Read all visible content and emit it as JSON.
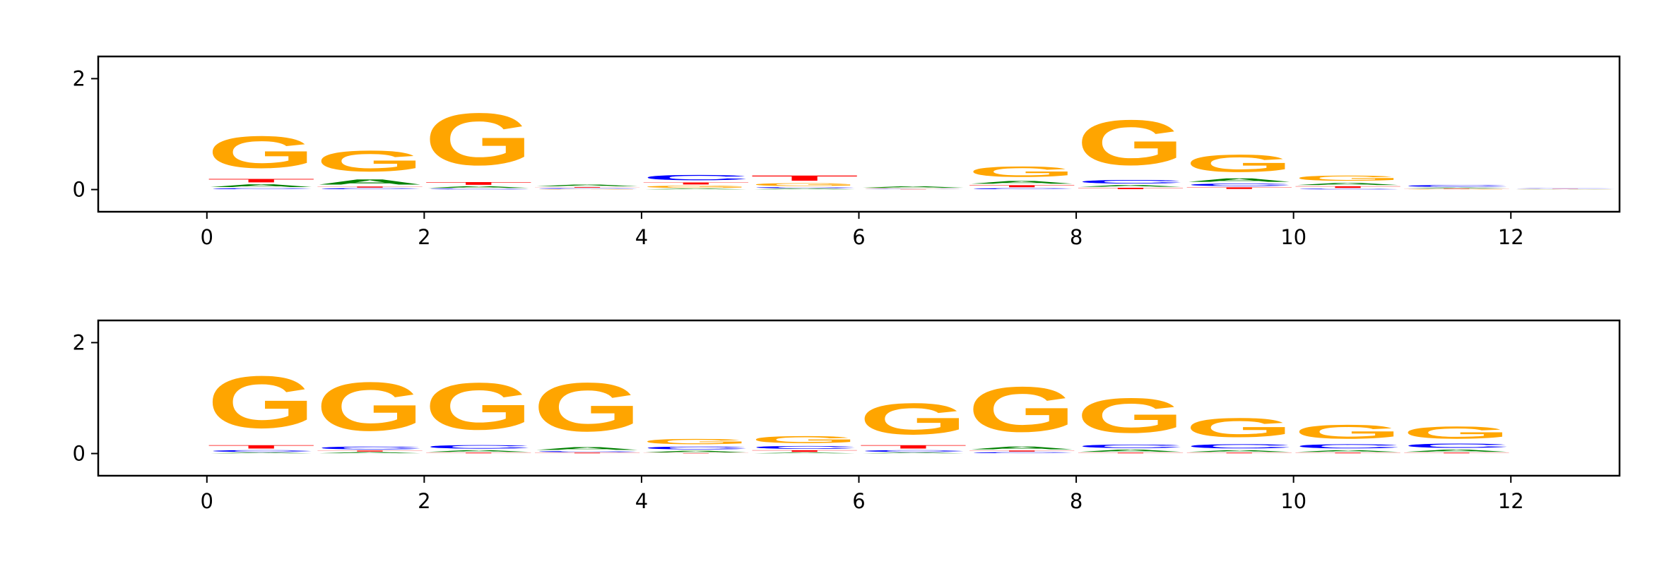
{
  "chart_data": [
    {
      "type": "sequence-logo",
      "title": "",
      "xlabel": "",
      "ylabel": "",
      "xlim": [
        -1,
        13
      ],
      "ylim": [
        -0.4,
        2.4
      ],
      "xticks": [
        0,
        2,
        4,
        6,
        8,
        10,
        12
      ],
      "yticks": [
        0,
        2
      ],
      "grid": false,
      "colors": {
        "A": "#008000",
        "C": "#0000ff",
        "G": "#ffa500",
        "T": "#ff0000"
      },
      "positions": [
        {
          "pos": 0,
          "A": 0.08,
          "C": 0.03,
          "G": 0.92,
          "T": 0.1
        },
        {
          "pos": 1,
          "A": 0.15,
          "C": 0.03,
          "G": 0.6,
          "T": 0.03
        },
        {
          "pos": 2,
          "A": 0.05,
          "C": 0.02,
          "G": 1.5,
          "T": 0.08
        },
        {
          "pos": 3,
          "A": 0.05,
          "C": 0.02,
          "G": 0.01,
          "T": 0.02
        },
        {
          "pos": 4,
          "A": 0.02,
          "C": 0.15,
          "G": 0.06,
          "T": 0.06
        },
        {
          "pos": 5,
          "A": 0.02,
          "C": 0.03,
          "G": 0.08,
          "T": 0.15
        },
        {
          "pos": 6,
          "A": 0.04,
          "C": 0.01,
          "G": 0.01,
          "T": 0.005
        },
        {
          "pos": 7,
          "A": 0.08,
          "C": 0.03,
          "G": 0.3,
          "T": 0.06
        },
        {
          "pos": 8,
          "A": 0.05,
          "C": 0.1,
          "G": 1.3,
          "T": 0.04
        },
        {
          "pos": 9,
          "A": 0.1,
          "C": 0.07,
          "G": 0.5,
          "T": 0.05
        },
        {
          "pos": 10,
          "A": 0.06,
          "C": 0.02,
          "G": 0.15,
          "T": 0.05
        },
        {
          "pos": 11,
          "A": 0.02,
          "C": 0.05,
          "G": 0.01,
          "T": 0.01
        },
        {
          "pos": 12,
          "A": 0.005,
          "C": 0.01,
          "G": 0.005,
          "T": 0.005
        }
      ]
    },
    {
      "type": "sequence-logo",
      "title": "",
      "xlabel": "",
      "ylabel": "",
      "xlim": [
        -1,
        13
      ],
      "ylim": [
        -0.4,
        2.4
      ],
      "xticks": [
        0,
        2,
        4,
        6,
        8,
        10,
        12
      ],
      "yticks": [
        0,
        2
      ],
      "grid": false,
      "colors": {
        "A": "#008000",
        "C": "#0000ff",
        "G": "#ffa500",
        "T": "#ff0000"
      },
      "positions": [
        {
          "pos": 0,
          "A": 0.02,
          "C": 0.05,
          "G": 1.5,
          "T": 0.1
        },
        {
          "pos": 1,
          "A": 0.03,
          "C": 0.08,
          "G": 1.4,
          "T": 0.03
        },
        {
          "pos": 2,
          "A": 0.05,
          "C": 0.1,
          "G": 1.35,
          "T": 0.02
        },
        {
          "pos": 3,
          "A": 0.08,
          "C": 0.03,
          "G": 1.4,
          "T": 0.02
        },
        {
          "pos": 4,
          "A": 0.05,
          "C": 0.08,
          "G": 0.15,
          "T": 0.01
        },
        {
          "pos": 5,
          "A": 0.02,
          "C": 0.08,
          "G": 0.2,
          "T": 0.05
        },
        {
          "pos": 6,
          "A": 0.02,
          "C": 0.05,
          "G": 0.9,
          "T": 0.1
        },
        {
          "pos": 7,
          "A": 0.08,
          "C": 0.03,
          "G": 1.3,
          "T": 0.03
        },
        {
          "pos": 8,
          "A": 0.06,
          "C": 0.1,
          "G": 1.0,
          "T": 0.02
        },
        {
          "pos": 9,
          "A": 0.05,
          "C": 0.12,
          "G": 0.55,
          "T": 0.02
        },
        {
          "pos": 10,
          "A": 0.05,
          "C": 0.12,
          "G": 0.4,
          "T": 0.02
        },
        {
          "pos": 11,
          "A": 0.06,
          "C": 0.12,
          "G": 0.35,
          "T": 0.02
        }
      ]
    }
  ]
}
